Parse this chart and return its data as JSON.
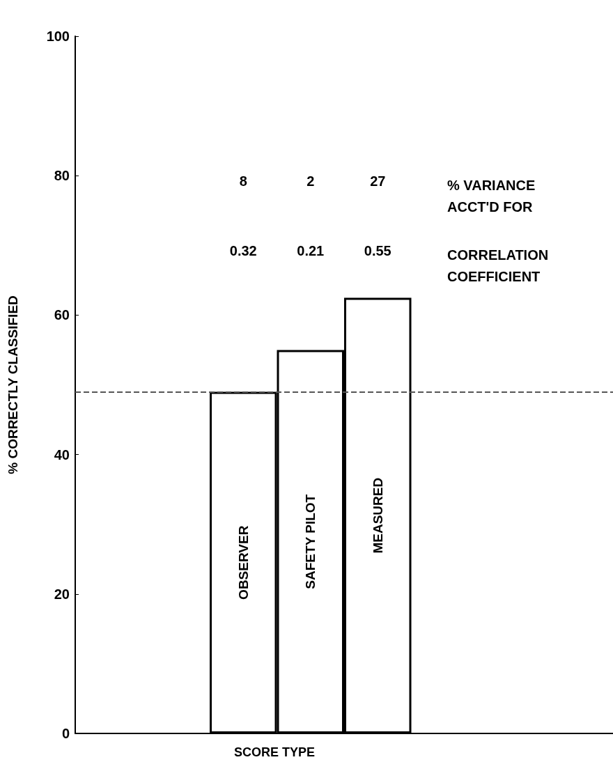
{
  "chart_data": {
    "type": "bar",
    "categories": [
      null,
      null,
      "OBSERVER",
      "SAFETY PILOT",
      "MEASURED",
      null,
      null,
      null
    ],
    "values": [
      null,
      null,
      49,
      55,
      62.5,
      null,
      null,
      null
    ],
    "color": "#ffffff",
    "xlabel": "SCORE TYPE",
    "ylabel": "% CORRECTLY CLASSIFIED",
    "ylim": [
      0,
      100
    ],
    "yticks": [
      0,
      20,
      40,
      60,
      80,
      100
    ],
    "grid": false,
    "ref_lines": [
      {
        "axis": "y",
        "value": 49,
        "color": "#555555",
        "line_style": "dashed"
      }
    ],
    "annotations": [
      "8",
      "2",
      "27",
      "% VARIANCE\nACCT'D FOR",
      "0.32",
      "0.21",
      "0.55",
      "CORRELATION\nCOEFFICIENT"
    ]
  }
}
